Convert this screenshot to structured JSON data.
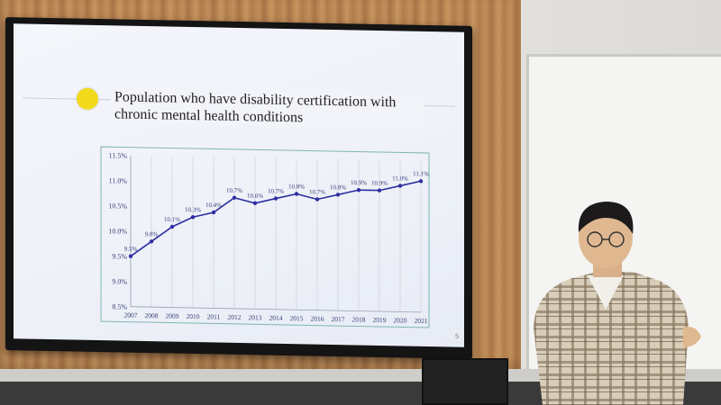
{
  "slide": {
    "title": "Population who have disability certification with chronic mental health conditions",
    "page_number": "5"
  },
  "colors": {
    "accent_dot": "#f2d91c",
    "line": "#2d2fa0",
    "frame": "#7fb5b5"
  },
  "chart_data": {
    "type": "line",
    "title": "Population who have disability certification with chronic mental health conditions",
    "categories": [
      "2007",
      "2008",
      "2009",
      "2010",
      "2011",
      "2012",
      "2013",
      "2014",
      "2015",
      "2016",
      "2017",
      "2018",
      "2019",
      "2020",
      "2021"
    ],
    "series": [
      {
        "values": [
          9.5,
          9.8,
          10.1,
          10.3,
          10.4,
          10.7,
          10.6,
          10.7,
          10.8,
          10.7,
          10.8,
          10.9,
          10.9,
          11.0,
          11.1
        ]
      }
    ],
    "data_labels": [
      "9.5%",
      "9.8%",
      "10.1%",
      "10.3%",
      "10.4%",
      "10.7%",
      "10.6%",
      "10.7%",
      "10.8%",
      "10.7%",
      "10.8%",
      "10.9%",
      "10.9%",
      "11.0%",
      "11.1%"
    ],
    "y_ticks": [
      "8.5%",
      "9.0%",
      "9.5%",
      "10.0%",
      "10.5%",
      "11.0%",
      "11.5%"
    ],
    "ylim": [
      8.5,
      11.5
    ],
    "grid": "vertical",
    "xlabel": "",
    "ylabel": ""
  }
}
